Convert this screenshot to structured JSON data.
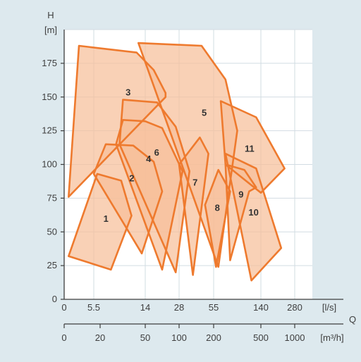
{
  "chart_data": {
    "type": "area",
    "title": "",
    "y_axis": {
      "name": "H",
      "unit": "[m]",
      "range": [
        0,
        200
      ],
      "ticks": [
        0,
        25,
        50,
        75,
        100,
        125,
        150,
        175
      ]
    },
    "x_axis_flow": {
      "name": "Q",
      "unit": "[l/s]",
      "ticks": [
        "0",
        "5.5",
        "14",
        "28",
        "55",
        "140",
        "280"
      ]
    },
    "x_axis_flow_m3h": {
      "unit": "[m³/h]",
      "ticks": [
        "0",
        "20",
        "50",
        "100",
        "200",
        "500",
        "1000"
      ]
    },
    "grid": true,
    "fill_color": "#f7bf9a",
    "edge_color": "#ee7a2e",
    "regions": [
      {
        "label": "1",
        "outline": [
          [
            3,
            32
          ],
          [
            22,
            93
          ],
          [
            36,
            88
          ],
          [
            42,
            62
          ],
          [
            30,
            22
          ]
        ]
      },
      {
        "label": "2",
        "outline": [
          [
            20,
            93
          ],
          [
            27,
            115
          ],
          [
            43,
            114
          ],
          [
            55,
            102
          ],
          [
            60,
            80
          ],
          [
            48,
            34
          ]
        ]
      },
      {
        "label": "3",
        "outline": [
          [
            3,
            76
          ],
          [
            10,
            188
          ],
          [
            45,
            183
          ],
          [
            55,
            170
          ],
          [
            62,
            153
          ],
          [
            62,
            150
          ]
        ]
      },
      {
        "label": "4",
        "outline": [
          [
            33,
            115
          ],
          [
            37,
            133
          ],
          [
            50,
            132
          ],
          [
            60,
            127
          ],
          [
            72,
            95
          ],
          [
            60,
            22
          ]
        ]
      },
      {
        "label": "5",
        "outline": [
          [
            46,
            190
          ],
          [
            83,
            188
          ],
          [
            95,
            163
          ],
          [
            100,
            125
          ],
          [
            92,
            24
          ]
        ]
      },
      {
        "label": "6",
        "outline": [
          [
            35,
            115
          ],
          [
            37,
            148
          ],
          [
            57,
            146
          ],
          [
            68,
            128
          ],
          [
            76,
            95
          ],
          [
            68,
            20
          ]
        ]
      },
      {
        "label": "7",
        "outline": [
          [
            70,
            100
          ],
          [
            82,
            120
          ],
          [
            87,
            108
          ],
          [
            78,
            18
          ]
        ]
      },
      {
        "label": "8",
        "outline": [
          [
            85,
            70
          ],
          [
            92,
            96
          ],
          [
            97,
            80
          ],
          [
            91,
            24
          ]
        ]
      },
      {
        "label": "9",
        "outline": [
          [
            95,
            100
          ],
          [
            103,
            96
          ],
          [
            108,
            83
          ],
          [
            105,
            80
          ],
          [
            97,
            29
          ]
        ]
      },
      {
        "label": "10",
        "outline": [
          [
            95,
            108
          ],
          [
            108,
            97
          ],
          [
            116,
            38
          ],
          [
            106,
            14
          ]
        ]
      },
      {
        "label": "11",
        "outline": [
          [
            93,
            147
          ],
          [
            108,
            135
          ],
          [
            117,
            97
          ],
          [
            110,
            79
          ],
          [
            95,
            100
          ]
        ]
      }
    ]
  }
}
